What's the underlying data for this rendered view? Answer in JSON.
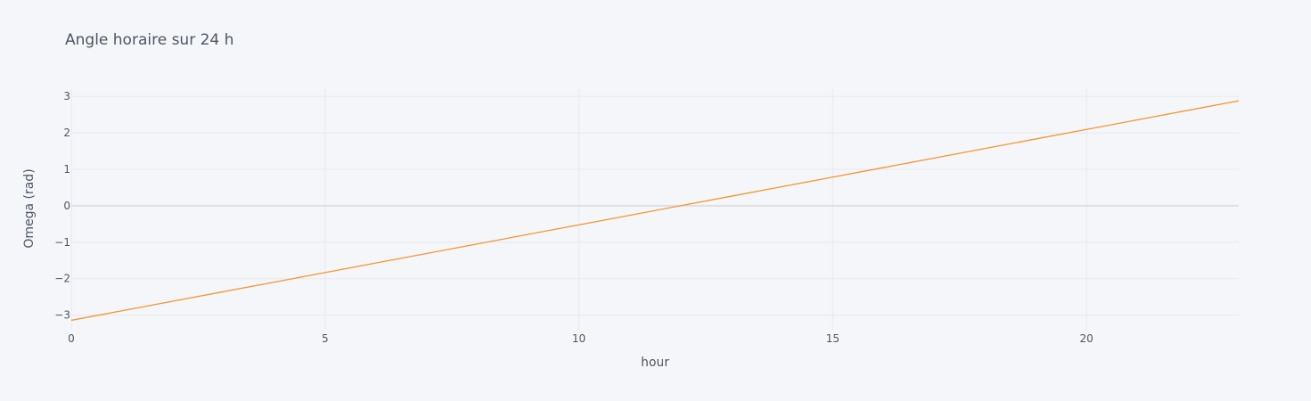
{
  "chart_data": {
    "type": "line",
    "title": "Angle horaire sur 24 h",
    "xlabel": "hour",
    "ylabel": "Omega (rad)",
    "xlim": [
      0,
      23
    ],
    "ylim": [
      -3.4,
      3.2
    ],
    "x_ticks": [
      0,
      5,
      10,
      15,
      20
    ],
    "y_ticks": [
      -3,
      -2,
      -1,
      0,
      1,
      2,
      3
    ],
    "y_tick_labels": [
      "−3",
      "−2",
      "−1",
      "0",
      "1",
      "2",
      "3"
    ],
    "grid": true,
    "legend": "none",
    "colors": {
      "background": "#f5f6f9",
      "grid": "#e6e8ee",
      "zero_line": "#dde0e7",
      "text": "#4d5663",
      "line": "#f5952f"
    },
    "series": [
      {
        "x": [
          0,
          1,
          2,
          3,
          4,
          5,
          6,
          7,
          8,
          9,
          10,
          11,
          12,
          13,
          14,
          15,
          16,
          17,
          18,
          19,
          20,
          21,
          22,
          23
        ],
        "values": [
          -3.1416,
          -2.8798,
          -2.618,
          -2.3562,
          -2.0944,
          -1.8326,
          -1.5708,
          -1.309,
          -1.0472,
          -0.7854,
          -0.5236,
          -0.2618,
          0.0,
          0.2618,
          0.5236,
          0.7854,
          1.0472,
          1.309,
          1.5708,
          1.8326,
          2.0944,
          2.3562,
          2.618,
          2.8798
        ]
      }
    ]
  }
}
